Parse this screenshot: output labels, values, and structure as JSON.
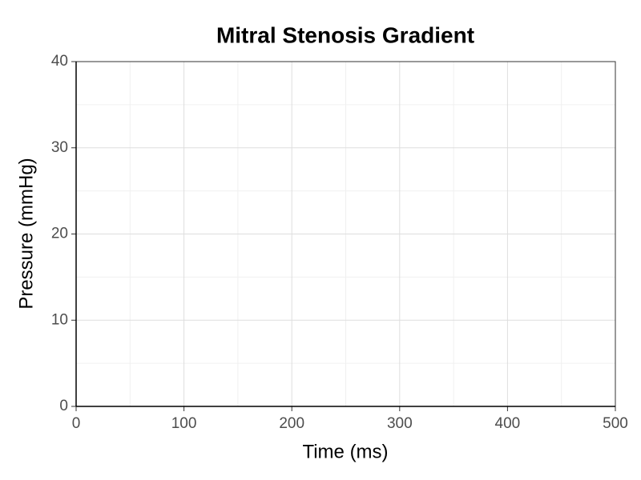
{
  "chart_data": {
    "type": "line",
    "title": "Mitral Stenosis Gradient",
    "xlabel": "Time (ms)",
    "ylabel": "Pressure (mmHg)",
    "series": [],
    "xlim": [
      0,
      500
    ],
    "ylim": [
      0,
      40
    ],
    "xticks": [
      0,
      100,
      200,
      300,
      400,
      500
    ],
    "yticks": [
      0,
      10,
      20,
      30,
      40
    ],
    "xminorticks": [
      50,
      150,
      250,
      350,
      450
    ],
    "yminorticks": [
      5,
      15,
      25,
      35
    ],
    "grid": true
  }
}
